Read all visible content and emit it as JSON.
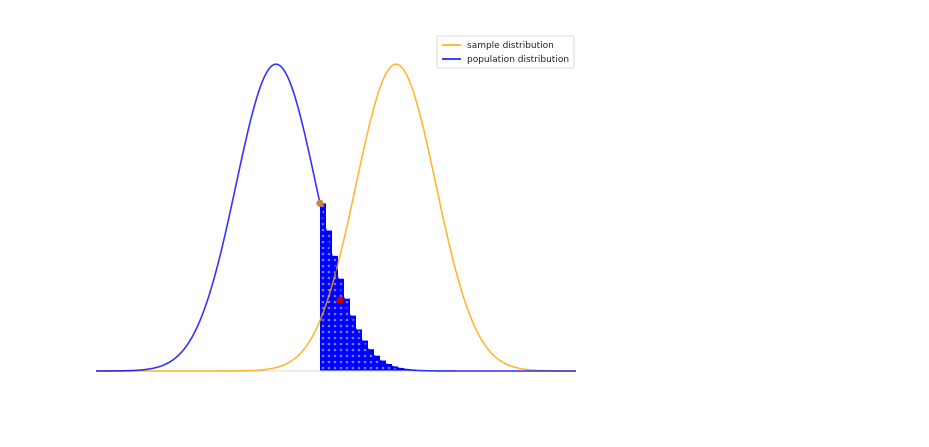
{
  "chart_data": {
    "type": "area",
    "title": "",
    "xlabel": "",
    "ylabel": "",
    "xlim": [
      -4.5,
      7.5
    ],
    "ylim": [
      0,
      0.42
    ],
    "axes_visible": false,
    "grid": false,
    "legend_position": "top-right",
    "series": [
      {
        "name": "sample distribution",
        "kind": "normal-pdf",
        "mean": 3,
        "sd": 1,
        "color": "#FFA500"
      },
      {
        "name": "population distribution",
        "kind": "normal-pdf",
        "mean": 0,
        "sd": 1,
        "color": "#0000FF"
      }
    ],
    "shaded_region": {
      "series": "population distribution",
      "x_from": 1.1,
      "x_to": 4.5,
      "color": "#0000FF",
      "fill": "dotted"
    },
    "points": [
      {
        "x": 1.1,
        "y": 0.218,
        "color": "#CD853F"
      },
      {
        "x": 1.6,
        "y": 0.092,
        "color": "#CC0000"
      }
    ]
  }
}
